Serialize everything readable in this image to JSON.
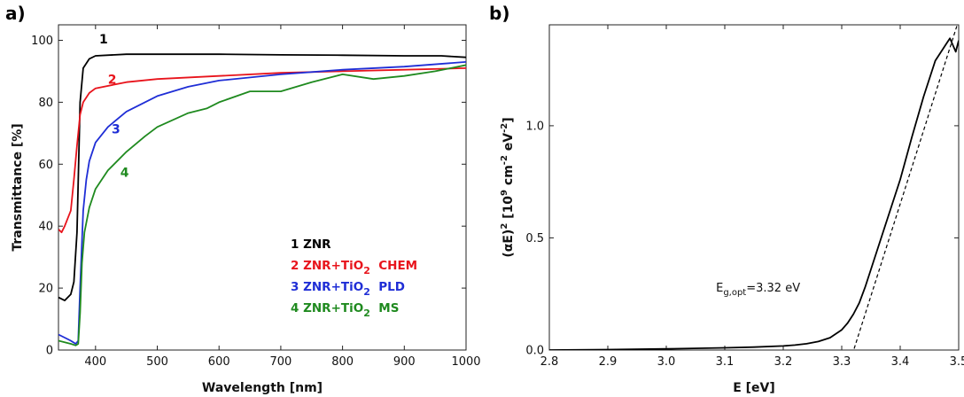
{
  "chart_data": [
    {
      "panel": "a)",
      "type": "line",
      "xlabel": "Wavelength [nm]",
      "ylabel": "Transmittance [%]",
      "xlim": [
        340,
        1000
      ],
      "ylim": [
        0,
        105
      ],
      "xticks": [
        400,
        500,
        600,
        700,
        800,
        900,
        1000
      ],
      "yticks": [
        0,
        20,
        40,
        60,
        80,
        100
      ],
      "legend_position": "bottom-right",
      "legend": [
        {
          "num": "1",
          "name": "ZNR",
          "sub": "",
          "suffix": "",
          "color": "#000000"
        },
        {
          "num": "2",
          "name": "ZNR+TiO",
          "sub": "2",
          "suffix": "CHEM",
          "color": "#e8141c"
        },
        {
          "num": "3",
          "name": "ZNR+TiO",
          "sub": "2",
          "suffix": "PLD",
          "color": "#1f2ed6"
        },
        {
          "num": "4",
          "name": "ZNR+TiO",
          "sub": "2",
          "suffix": "MS",
          "color": "#1f8a1f"
        }
      ],
      "series": [
        {
          "label": "1",
          "color": "#000000",
          "label_at": [
            406,
            99
          ],
          "x": [
            340,
            350,
            360,
            365,
            370,
            375,
            380,
            390,
            400,
            450,
            500,
            600,
            700,
            800,
            900,
            960,
            1000
          ],
          "y": [
            17,
            16,
            18,
            22,
            38,
            80,
            91,
            94,
            95,
            95.5,
            95.5,
            95.5,
            95.3,
            95.2,
            95,
            95,
            94.5
          ]
        },
        {
          "label": "2",
          "color": "#e8141c",
          "label_at": [
            420,
            86
          ],
          "x": [
            340,
            345,
            350,
            360,
            365,
            370,
            375,
            380,
            390,
            400,
            450,
            500,
            600,
            700,
            800,
            900,
            1000
          ],
          "y": [
            39,
            38,
            40,
            45,
            55,
            66,
            76,
            80,
            83,
            84.5,
            86.5,
            87.5,
            88.5,
            89.5,
            90,
            90.5,
            91
          ]
        },
        {
          "label": "3",
          "color": "#1f2ed6",
          "label_at": [
            426,
            70
          ],
          "x": [
            340,
            350,
            360,
            368,
            372,
            375,
            380,
            385,
            390,
            400,
            420,
            450,
            500,
            550,
            600,
            700,
            800,
            900,
            1000
          ],
          "y": [
            5,
            4,
            3,
            2,
            3,
            20,
            45,
            55,
            61,
            67,
            72,
            77,
            82,
            85,
            87,
            89,
            90.5,
            91.5,
            93
          ]
        },
        {
          "label": "4",
          "color": "#1f8a1f",
          "label_at": [
            440,
            56
          ],
          "x": [
            340,
            350,
            360,
            368,
            372,
            375,
            378,
            382,
            390,
            400,
            420,
            450,
            480,
            500,
            550,
            580,
            600,
            650,
            700,
            750,
            800,
            850,
            900,
            950,
            1000
          ],
          "y": [
            3,
            2.5,
            2,
            1.5,
            2,
            12,
            28,
            38,
            46,
            52,
            58,
            64,
            69,
            72,
            76.5,
            78,
            80,
            83.5,
            83.5,
            86.5,
            89,
            87.5,
            88.5,
            90,
            92
          ]
        }
      ]
    },
    {
      "panel": "b)",
      "type": "line",
      "xlabel": "E [eV]",
      "ylabel_parts": [
        "(αE)",
        "2",
        " [10",
        "9",
        " cm",
        "-2",
        " eV",
        "-2",
        "]"
      ],
      "xlim": [
        2.8,
        3.5
      ],
      "ylim": [
        0,
        1.45
      ],
      "xticks": [
        "2.8",
        "2.9",
        "3.0",
        "3.1",
        "3.2",
        "3.3",
        "3.4",
        "3.5"
      ],
      "yticks": [
        "0.0",
        "0.5",
        "1.0"
      ],
      "annotation": {
        "main": "E",
        "sub": "g,opt",
        "tail": "=3.32 eV",
        "at": [
          3.085,
          0.26
        ]
      },
      "series": [
        {
          "name": "data",
          "style": "solid",
          "color": "#000000",
          "x": [
            2.8,
            2.9,
            3.0,
            3.1,
            3.15,
            3.2,
            3.22,
            3.24,
            3.26,
            3.28,
            3.3,
            3.31,
            3.32,
            3.33,
            3.34,
            3.35,
            3.36,
            3.38,
            3.4,
            3.42,
            3.44,
            3.46,
            3.47,
            3.48,
            3.485,
            3.49,
            3.495,
            3.5
          ],
          "y": [
            0.0,
            0.002,
            0.005,
            0.01,
            0.013,
            0.018,
            0.022,
            0.028,
            0.038,
            0.055,
            0.09,
            0.12,
            0.16,
            0.21,
            0.28,
            0.36,
            0.44,
            0.6,
            0.76,
            0.95,
            1.13,
            1.29,
            1.33,
            1.37,
            1.39,
            1.36,
            1.33,
            1.38
          ]
        },
        {
          "name": "fit",
          "style": "dashed",
          "color": "#000000",
          "x": [
            3.318,
            3.5
          ],
          "y": [
            -0.02,
            1.47
          ]
        }
      ]
    }
  ]
}
